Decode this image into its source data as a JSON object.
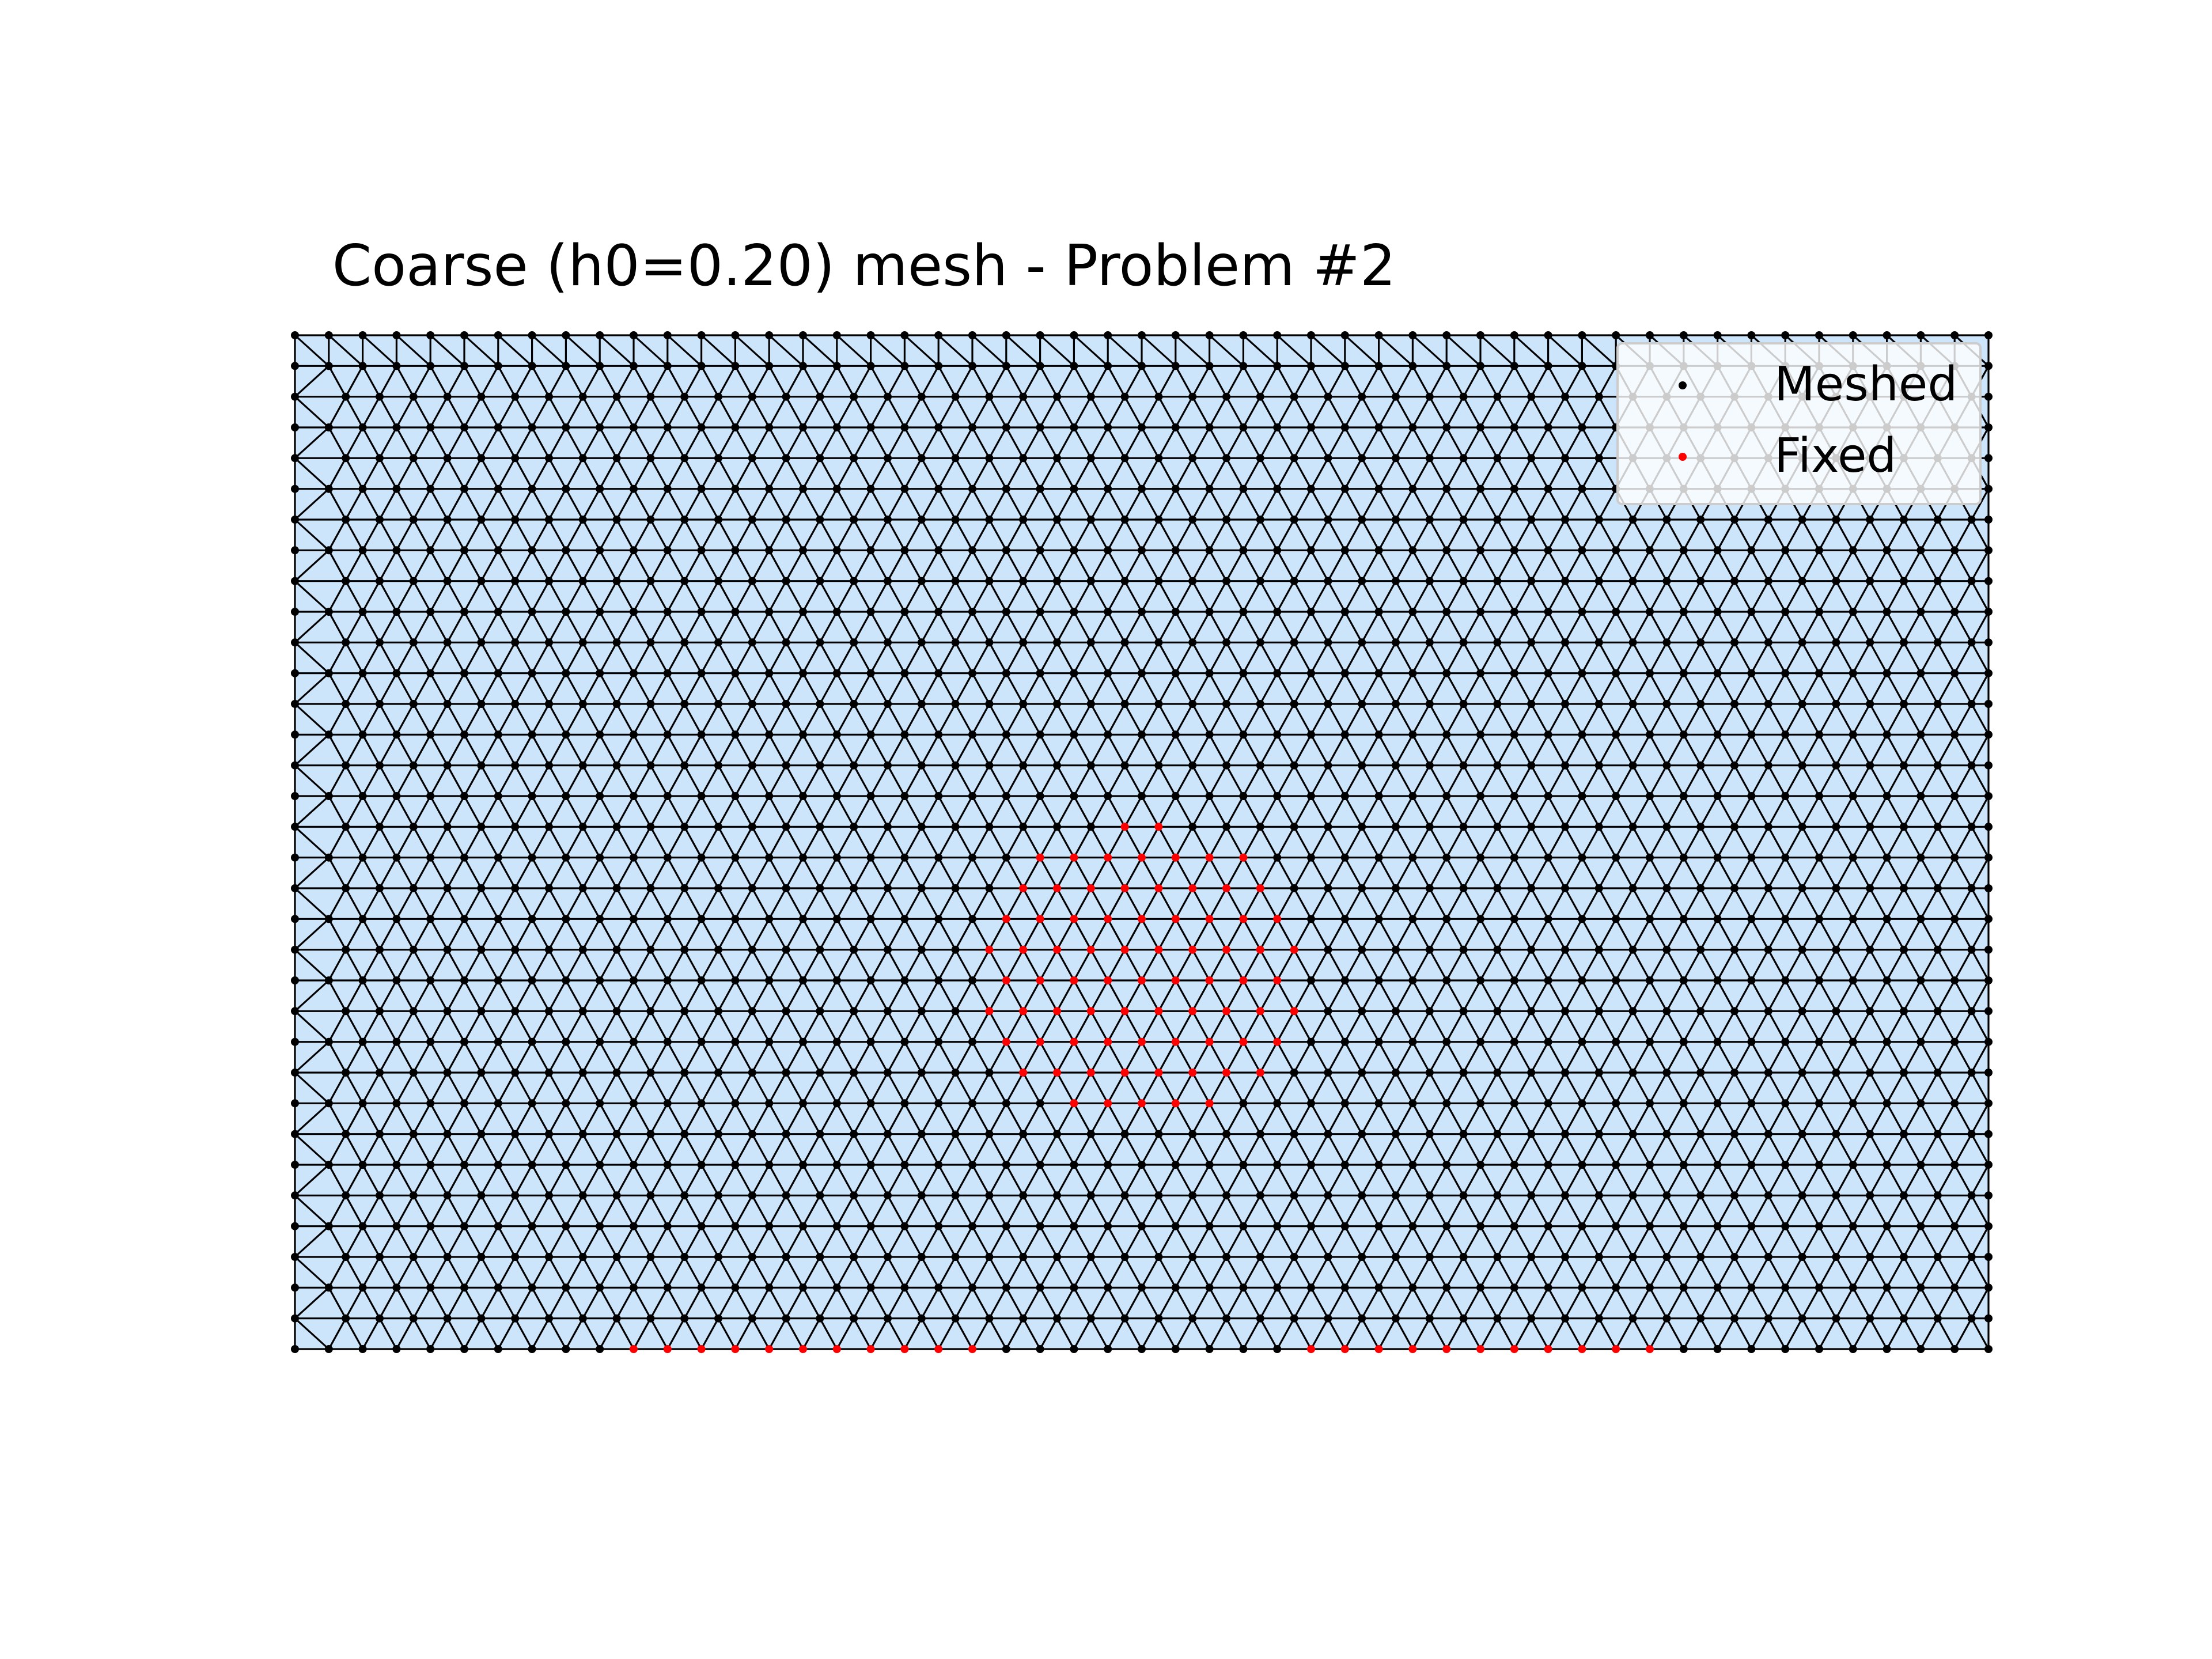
{
  "title": "Coarse (h0=0.20) mesh - Problem #2",
  "legend": {
    "items": [
      {
        "label": "Meshed",
        "color": "#000000"
      },
      {
        "label": "Fixed",
        "color": "#ff0000"
      }
    ]
  },
  "colors": {
    "fill": "#cce5fb",
    "edge": "#000000",
    "meshed_node": "#000000",
    "fixed_node": "#ff0000"
  },
  "mesh": {
    "element_type": "triangle",
    "domain": {
      "x": [
        0,
        5
      ],
      "y": [
        0,
        3
      ]
    },
    "h0": 0.2,
    "fixed_bottom_segments": [
      [
        1.0,
        2.0
      ],
      [
        3.0,
        4.0
      ]
    ],
    "fixed_region": {
      "shape": "ellipse",
      "center": [
        2.5,
        1.1
      ],
      "radii": [
        0.5,
        0.45
      ]
    }
  }
}
